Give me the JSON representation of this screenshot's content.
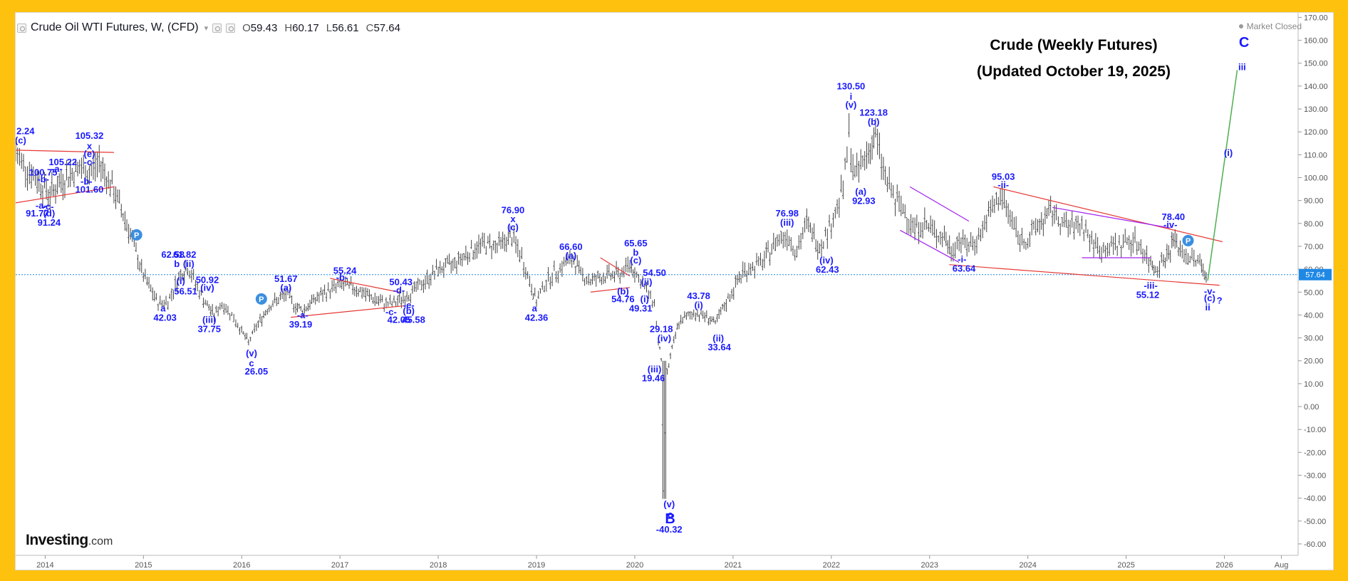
{
  "header": {
    "symbol_title": "Crude Oil WTI Futures, W, (CFD)",
    "ohlc": [
      {
        "key": "O",
        "value": "59.43"
      },
      {
        "key": "H",
        "value": "60.17"
      },
      {
        "key": "L",
        "value": "56.61"
      },
      {
        "key": "C",
        "value": "57.64"
      }
    ],
    "market_status": "Market Closed"
  },
  "overlay_title": {
    "line1": "Crude (Weekly Futures)",
    "line2": "(Updated October 19, 2025)"
  },
  "branding": {
    "logo": "Investing",
    "logo_suffix": ".com"
  },
  "price_tag": "57.64",
  "colors": {
    "wave_label": "#1a1aff",
    "trendline_red": "#e53935",
    "trendline_purple": "#a020f0",
    "projection_green": "#4caf50",
    "price_line": "#1e88e5",
    "price_tag_bg": "#1e88e5",
    "candles": "#444444",
    "frame_border": "#fec10e"
  },
  "chart_data": {
    "type": "candlestick",
    "title": "",
    "ylim": [
      -65,
      172
    ],
    "y_ticks": [
      170,
      160,
      150,
      140,
      130,
      120,
      110,
      100,
      90,
      80,
      70,
      60,
      50,
      40,
      30,
      20,
      10,
      0,
      -10,
      -20,
      -30,
      -40,
      -50,
      -60
    ],
    "y_tick_labels": [
      "170.00",
      "160.00",
      "150.00",
      "140.00",
      "130.00",
      "120.00",
      "110.00",
      "100.00",
      "90.00",
      "80.00",
      "70.00",
      "60.00",
      "50.00",
      "40.00",
      "30.00",
      "20.00",
      "10.00",
      "0.00",
      "-10.00",
      "-20.00",
      "-30.00",
      "-40.00",
      "-50.00",
      "-60.00"
    ],
    "x_range": [
      2013.7,
      2026.75
    ],
    "x_ticks": [
      {
        "x": 2014.0,
        "label": "2014"
      },
      {
        "x": 2015.0,
        "label": "2015"
      },
      {
        "x": 2016.0,
        "label": "2016"
      },
      {
        "x": 2017.0,
        "label": "2017"
      },
      {
        "x": 2018.0,
        "label": "2018"
      },
      {
        "x": 2019.0,
        "label": "2019"
      },
      {
        "x": 2020.0,
        "label": "2020"
      },
      {
        "x": 2021.0,
        "label": "2021"
      },
      {
        "x": 2022.0,
        "label": "2022"
      },
      {
        "x": 2023.0,
        "label": "2023"
      },
      {
        "x": 2024.0,
        "label": "2024"
      },
      {
        "x": 2025.0,
        "label": "2025"
      },
      {
        "x": 2026.0,
        "label": "2026"
      },
      {
        "x": 2026.58,
        "label": "Aug"
      }
    ],
    "current_price": 57.64,
    "price_path": [
      [
        2013.7,
        110
      ],
      [
        2013.9,
        100
      ],
      [
        2014.05,
        93
      ],
      [
        2014.2,
        100
      ],
      [
        2014.35,
        104
      ],
      [
        2014.45,
        102
      ],
      [
        2014.55,
        107
      ],
      [
        2014.7,
        94
      ],
      [
        2014.85,
        78
      ],
      [
        2015.0,
        57
      ],
      [
        2015.15,
        45
      ],
      [
        2015.25,
        46
      ],
      [
        2015.38,
        58
      ],
      [
        2015.45,
        61
      ],
      [
        2015.55,
        52
      ],
      [
        2015.65,
        44
      ],
      [
        2015.72,
        40
      ],
      [
        2015.8,
        45
      ],
      [
        2015.9,
        40
      ],
      [
        2016.0,
        33
      ],
      [
        2016.07,
        28
      ],
      [
        2016.15,
        35
      ],
      [
        2016.28,
        44
      ],
      [
        2016.45,
        49
      ],
      [
        2016.55,
        44
      ],
      [
        2016.62,
        42
      ],
      [
        2016.75,
        47
      ],
      [
        2016.9,
        51
      ],
      [
        2017.0,
        53
      ],
      [
        2017.15,
        52
      ],
      [
        2017.3,
        48
      ],
      [
        2017.45,
        45
      ],
      [
        2017.55,
        45
      ],
      [
        2017.7,
        49
      ],
      [
        2017.85,
        54
      ],
      [
        2018.0,
        60
      ],
      [
        2018.15,
        62
      ],
      [
        2018.3,
        67
      ],
      [
        2018.45,
        71
      ],
      [
        2018.6,
        70
      ],
      [
        2018.75,
        74
      ],
      [
        2018.85,
        65
      ],
      [
        2018.95,
        52
      ],
      [
        2019.0,
        46
      ],
      [
        2019.1,
        55
      ],
      [
        2019.3,
        63
      ],
      [
        2019.38,
        64
      ],
      [
        2019.45,
        58
      ],
      [
        2019.55,
        55
      ],
      [
        2019.7,
        57
      ],
      [
        2019.85,
        58
      ],
      [
        2019.95,
        62
      ],
      [
        2020.0,
        59
      ],
      [
        2020.1,
        52
      ],
      [
        2020.2,
        45
      ],
      [
        2020.24,
        28
      ],
      [
        2020.27,
        21
      ],
      [
        2020.3,
        -38
      ],
      [
        2020.33,
        15
      ],
      [
        2020.38,
        25
      ],
      [
        2020.45,
        37
      ],
      [
        2020.6,
        41
      ],
      [
        2020.75,
        39
      ],
      [
        2020.82,
        36
      ],
      [
        2020.95,
        47
      ],
      [
        2021.1,
        59
      ],
      [
        2021.3,
        63
      ],
      [
        2021.45,
        73
      ],
      [
        2021.55,
        75
      ],
      [
        2021.65,
        68
      ],
      [
        2021.75,
        80
      ],
      [
        2021.88,
        70
      ],
      [
        2022.0,
        80
      ],
      [
        2022.12,
        95
      ],
      [
        2022.18,
        118
      ],
      [
        2022.24,
        100
      ],
      [
        2022.3,
        105
      ],
      [
        2022.38,
        112
      ],
      [
        2022.45,
        118
      ],
      [
        2022.55,
        100
      ],
      [
        2022.65,
        90
      ],
      [
        2022.75,
        85
      ],
      [
        2022.85,
        78
      ],
      [
        2022.95,
        80
      ],
      [
        2023.05,
        76
      ],
      [
        2023.15,
        74
      ],
      [
        2023.22,
        68
      ],
      [
        2023.3,
        73
      ],
      [
        2023.4,
        70
      ],
      [
        2023.5,
        74
      ],
      [
        2023.62,
        85
      ],
      [
        2023.72,
        92
      ],
      [
        2023.8,
        85
      ],
      [
        2023.92,
        73
      ],
      [
        2024.0,
        73
      ],
      [
        2024.12,
        80
      ],
      [
        2024.25,
        85
      ],
      [
        2024.35,
        80
      ],
      [
        2024.45,
        78
      ],
      [
        2024.55,
        80
      ],
      [
        2024.65,
        72
      ],
      [
        2024.75,
        68
      ],
      [
        2024.85,
        70
      ],
      [
        2024.95,
        71
      ],
      [
        2025.05,
        73
      ],
      [
        2025.15,
        70
      ],
      [
        2025.25,
        62
      ],
      [
        2025.3,
        61
      ],
      [
        2025.38,
        64
      ],
      [
        2025.45,
        68
      ],
      [
        2025.48,
        74
      ],
      [
        2025.55,
        68
      ],
      [
        2025.65,
        65
      ],
      [
        2025.75,
        63
      ],
      [
        2025.8,
        59
      ],
      [
        2025.83,
        57.64
      ]
    ],
    "red_trendlines": [
      [
        [
          2013.7,
          112
        ],
        [
          2014.7,
          111
        ]
      ],
      [
        [
          2013.7,
          89
        ],
        [
          2014.7,
          96
        ]
      ],
      [
        [
          2016.5,
          39
        ],
        [
          2017.65,
          44
        ]
      ],
      [
        [
          2016.9,
          56
        ],
        [
          2017.6,
          50
        ]
      ],
      [
        [
          2019.65,
          65
        ],
        [
          2019.95,
          57
        ]
      ],
      [
        [
          2019.55,
          50
        ],
        [
          2019.95,
          52
        ]
      ],
      [
        [
          2023.65,
          96
        ],
        [
          2025.98,
          72
        ]
      ],
      [
        [
          2023.2,
          62
        ],
        [
          2025.95,
          53
        ]
      ]
    ],
    "purple_trendlines": [
      [
        [
          2022.8,
          96
        ],
        [
          2023.4,
          81
        ]
      ],
      [
        [
          2022.7,
          77
        ],
        [
          2023.3,
          63
        ]
      ],
      [
        [
          2024.25,
          87
        ],
        [
          2025.45,
          78
        ]
      ],
      [
        [
          2024.55,
          65
        ],
        [
          2025.25,
          65
        ]
      ]
    ],
    "projection": [
      [
        2025.83,
        55
      ],
      [
        2026.13,
        147
      ]
    ],
    "annotations": [
      {
        "x": 2013.8,
        "y": 119,
        "text": "2.24"
      },
      {
        "x": 2013.75,
        "y": 115,
        "text": "(c)"
      },
      {
        "x": 2014.45,
        "y": 117,
        "text": "105.32"
      },
      {
        "x": 2014.45,
        "y": 112.5,
        "text": "x"
      },
      {
        "x": 2014.45,
        "y": 109,
        "text": "(e)"
      },
      {
        "x": 2014.45,
        "y": 105.5,
        "text": "-c-"
      },
      {
        "x": 2014.18,
        "y": 105.5,
        "text": "105.22"
      },
      {
        "x": 2014.12,
        "y": 102.5,
        "text": "-a-"
      },
      {
        "x": 2013.98,
        "y": 101,
        "text": "100.75"
      },
      {
        "x": 2013.98,
        "y": 98,
        "text": "-b-"
      },
      {
        "x": 2014.42,
        "y": 97,
        "text": "-b-"
      },
      {
        "x": 2014.45,
        "y": 93.5,
        "text": "101.60"
      },
      {
        "x": 2013.96,
        "y": 86.5,
        "text": "-a-"
      },
      {
        "x": 2014.03,
        "y": 86,
        "text": "-c-"
      },
      {
        "x": 2013.92,
        "y": 83,
        "text": "91.77"
      },
      {
        "x": 2014.04,
        "y": 83,
        "text": "(d)"
      },
      {
        "x": 2014.04,
        "y": 79,
        "text": "91.24"
      },
      {
        "x": 2015.3,
        "y": 65,
        "text": "62.58"
      },
      {
        "x": 2015.42,
        "y": 65,
        "text": "61.82"
      },
      {
        "x": 2015.34,
        "y": 61,
        "text": "b"
      },
      {
        "x": 2015.46,
        "y": 61,
        "text": "(ii)"
      },
      {
        "x": 2015.38,
        "y": 53.5,
        "text": "(i)"
      },
      {
        "x": 2015.43,
        "y": 49,
        "text": "56.51"
      },
      {
        "x": 2015.65,
        "y": 54,
        "text": "50.92"
      },
      {
        "x": 2015.65,
        "y": 50.5,
        "text": "(iv)"
      },
      {
        "x": 2015.2,
        "y": 41.5,
        "text": "a"
      },
      {
        "x": 2015.22,
        "y": 37.5,
        "text": "42.03"
      },
      {
        "x": 2015.67,
        "y": 36.5,
        "text": "(iii)"
      },
      {
        "x": 2015.67,
        "y": 32.5,
        "text": "37.75"
      },
      {
        "x": 2016.1,
        "y": 22,
        "text": "(v)"
      },
      {
        "x": 2016.1,
        "y": 17.5,
        "text": "c"
      },
      {
        "x": 2016.15,
        "y": 14,
        "text": "26.05"
      },
      {
        "x": 2016.45,
        "y": 54.5,
        "text": "51.67"
      },
      {
        "x": 2016.45,
        "y": 50.5,
        "text": "(a)"
      },
      {
        "x": 2016.62,
        "y": 38.5,
        "text": "-a-"
      },
      {
        "x": 2016.6,
        "y": 34.5,
        "text": "39.19"
      },
      {
        "x": 2017.05,
        "y": 58,
        "text": "55.24"
      },
      {
        "x": 2017.02,
        "y": 55,
        "text": "-b-"
      },
      {
        "x": 2017.62,
        "y": 53,
        "text": "50.43"
      },
      {
        "x": 2017.6,
        "y": 49.5,
        "text": "-d-"
      },
      {
        "x": 2017.7,
        "y": 43,
        "text": "-e-"
      },
      {
        "x": 2017.52,
        "y": 40,
        "text": "-c-"
      },
      {
        "x": 2017.7,
        "y": 40.5,
        "text": "(b)"
      },
      {
        "x": 2017.6,
        "y": 36.5,
        "text": "42.05"
      },
      {
        "x": 2017.75,
        "y": 36.5,
        "text": "45.58"
      },
      {
        "x": 2018.76,
        "y": 84.5,
        "text": "76.90"
      },
      {
        "x": 2018.76,
        "y": 80.5,
        "text": "x"
      },
      {
        "x": 2018.76,
        "y": 77,
        "text": "(c)"
      },
      {
        "x": 2019.35,
        "y": 68.5,
        "text": "66.60"
      },
      {
        "x": 2019.35,
        "y": 64.5,
        "text": "(a)"
      },
      {
        "x": 2018.98,
        "y": 41.5,
        "text": "a"
      },
      {
        "x": 2019.0,
        "y": 37.5,
        "text": "42.36"
      },
      {
        "x": 2020.01,
        "y": 70,
        "text": "65.65"
      },
      {
        "x": 2020.01,
        "y": 66,
        "text": "b"
      },
      {
        "x": 2020.01,
        "y": 62.5,
        "text": "(c)"
      },
      {
        "x": 2020.2,
        "y": 57,
        "text": "54.50"
      },
      {
        "x": 2020.12,
        "y": 53,
        "text": "(ii)"
      },
      {
        "x": 2019.88,
        "y": 49,
        "text": "(b)"
      },
      {
        "x": 2019.88,
        "y": 45.5,
        "text": "54.76"
      },
      {
        "x": 2020.1,
        "y": 45.5,
        "text": "(i)"
      },
      {
        "x": 2020.06,
        "y": 41.5,
        "text": "49.31"
      },
      {
        "x": 2020.27,
        "y": 32.5,
        "text": "29.18"
      },
      {
        "x": 2020.3,
        "y": 28.5,
        "text": "(iv)"
      },
      {
        "x": 2020.2,
        "y": 15,
        "text": "(iii)"
      },
      {
        "x": 2020.19,
        "y": 11,
        "text": "19.46"
      },
      {
        "x": 2020.65,
        "y": 47,
        "text": "43.78"
      },
      {
        "x": 2020.65,
        "y": 43,
        "text": "(i)"
      },
      {
        "x": 2020.85,
        "y": 28.5,
        "text": "(ii)"
      },
      {
        "x": 2020.86,
        "y": 24.5,
        "text": "33.64"
      },
      {
        "x": 2020.35,
        "y": -44,
        "text": "(v)"
      },
      {
        "x": 2020.36,
        "y": -48.5,
        "text": "c"
      },
      {
        "x": 2020.36,
        "y": -51,
        "text": "B"
      },
      {
        "x": 2020.35,
        "y": -55,
        "text": "-40.32"
      },
      {
        "x": 2021.55,
        "y": 83,
        "text": "76.98"
      },
      {
        "x": 2021.55,
        "y": 79,
        "text": "(iii)"
      },
      {
        "x": 2021.95,
        "y": 62.5,
        "text": "(iv)"
      },
      {
        "x": 2021.96,
        "y": 58.5,
        "text": "62.43"
      },
      {
        "x": 2022.2,
        "y": 138.5,
        "text": "130.50"
      },
      {
        "x": 2022.2,
        "y": 134,
        "text": "i"
      },
      {
        "x": 2022.2,
        "y": 130.5,
        "text": "(v)"
      },
      {
        "x": 2022.43,
        "y": 127,
        "text": "123.18"
      },
      {
        "x": 2022.43,
        "y": 123,
        "text": "(b)"
      },
      {
        "x": 2022.3,
        "y": 92.5,
        "text": "(a)"
      },
      {
        "x": 2022.33,
        "y": 88.5,
        "text": "92.93"
      },
      {
        "x": 2023.75,
        "y": 99,
        "text": "95.03"
      },
      {
        "x": 2023.75,
        "y": 95.5,
        "text": "-ii-"
      },
      {
        "x": 2023.33,
        "y": 63,
        "text": "-i-"
      },
      {
        "x": 2023.35,
        "y": 59,
        "text": "63.64"
      },
      {
        "x": 2025.48,
        "y": 81.5,
        "text": "78.40"
      },
      {
        "x": 2025.45,
        "y": 78,
        "text": "-iv-"
      },
      {
        "x": 2025.25,
        "y": 51.5,
        "text": "-iii-"
      },
      {
        "x": 2025.22,
        "y": 47.5,
        "text": "55.12"
      },
      {
        "x": 2025.85,
        "y": 49,
        "text": "-v-"
      },
      {
        "x": 2025.85,
        "y": 46,
        "text": "(c)"
      },
      {
        "x": 2025.83,
        "y": 42,
        "text": "ii"
      },
      {
        "x": 2025.95,
        "y": 45,
        "text": "?"
      },
      {
        "x": 2026.04,
        "y": 109.5,
        "text": "(i)"
      },
      {
        "x": 2026.18,
        "y": 147,
        "text": "iii"
      },
      {
        "x": 2026.2,
        "y": 157,
        "text": "C"
      }
    ],
    "event_markers": [
      {
        "x": 2014.93,
        "y": 75,
        "text": "P"
      },
      {
        "x": 2016.2,
        "y": 47,
        "text": "P"
      },
      {
        "x": 2025.63,
        "y": 72.5,
        "text": "P"
      }
    ]
  }
}
